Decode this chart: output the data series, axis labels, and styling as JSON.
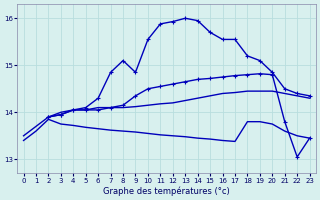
{
  "xlabel": "Graphe des températures (°c)",
  "bg_color": "#d8f0ee",
  "line_color": "#0000bb",
  "grid_color": "#b8dede",
  "ylim": [
    12.7,
    16.3
  ],
  "xlim": [
    -0.5,
    23.5
  ],
  "yticks": [
    13,
    14,
    15,
    16
  ],
  "xticks": [
    0,
    1,
    2,
    3,
    4,
    5,
    6,
    7,
    8,
    9,
    10,
    11,
    12,
    13,
    14,
    15,
    16,
    17,
    18,
    19,
    20,
    21,
    22,
    23
  ],
  "series": [
    {
      "x": [
        2,
        3,
        4,
        5,
        6,
        7,
        8,
        9,
        10,
        11,
        12,
        13,
        14,
        15,
        16,
        17,
        18,
        19,
        20,
        21,
        22,
        23
      ],
      "y": [
        13.9,
        13.95,
        14.05,
        14.1,
        14.3,
        14.85,
        15.1,
        14.85,
        15.55,
        15.88,
        15.93,
        16.0,
        15.95,
        15.7,
        15.55,
        15.55,
        15.2,
        15.1,
        14.85,
        14.5,
        14.4,
        14.35
      ],
      "marker": true
    },
    {
      "x": [
        2,
        3,
        4,
        5,
        6,
        7,
        8,
        9,
        10,
        11,
        12,
        13,
        14,
        15,
        16,
        17,
        18,
        19,
        20,
        21,
        22,
        23
      ],
      "y": [
        13.9,
        13.95,
        14.05,
        14.05,
        14.05,
        14.1,
        14.15,
        14.35,
        14.5,
        14.55,
        14.6,
        14.65,
        14.7,
        14.72,
        14.75,
        14.78,
        14.8,
        14.82,
        14.8,
        13.8,
        13.05,
        13.45
      ],
      "marker": true
    },
    {
      "x": [
        0,
        1,
        2,
        3,
        4,
        5,
        6,
        7,
        8,
        9,
        10,
        11,
        12,
        13,
        14,
        15,
        16,
        17,
        18,
        19,
        20,
        21,
        22,
        23
      ],
      "y": [
        13.5,
        13.7,
        13.9,
        14.0,
        14.05,
        14.05,
        14.1,
        14.1,
        14.1,
        14.12,
        14.15,
        14.18,
        14.2,
        14.25,
        14.3,
        14.35,
        14.4,
        14.42,
        14.45,
        14.45,
        14.45,
        14.4,
        14.35,
        14.3
      ],
      "marker": false
    },
    {
      "x": [
        0,
        1,
        2,
        3,
        4,
        5,
        6,
        7,
        8,
        9,
        10,
        11,
        12,
        13,
        14,
        15,
        16,
        17,
        18,
        19,
        20,
        21,
        22,
        23
      ],
      "y": [
        13.4,
        13.6,
        13.85,
        13.75,
        13.72,
        13.68,
        13.65,
        13.62,
        13.6,
        13.58,
        13.55,
        13.52,
        13.5,
        13.48,
        13.45,
        13.43,
        13.4,
        13.38,
        13.8,
        13.8,
        13.75,
        13.6,
        13.5,
        13.45
      ],
      "marker": false
    }
  ]
}
